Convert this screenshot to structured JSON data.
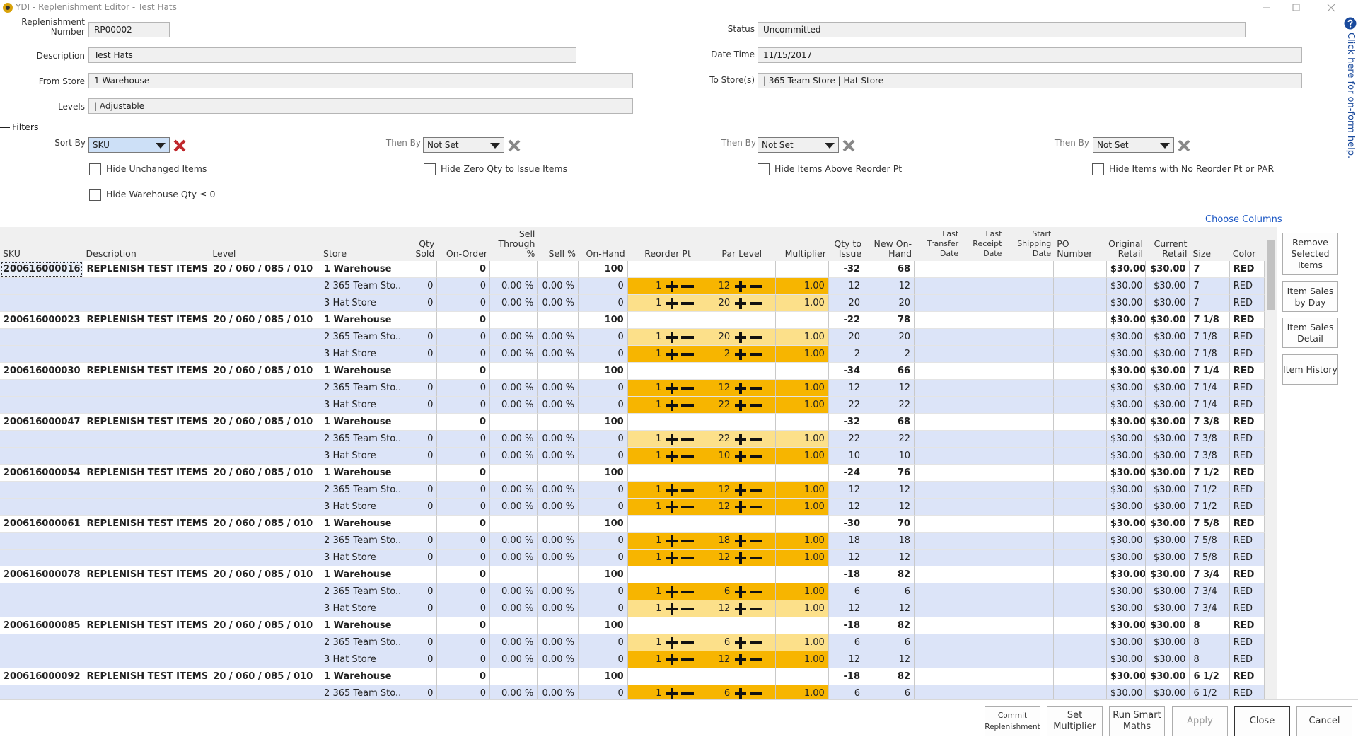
{
  "window": {
    "title": "YDI - Replenishment Editor - Test Hats"
  },
  "form": {
    "fields": [
      {
        "label": "Replenishment Number",
        "value": "RP00002"
      },
      {
        "label": "Description",
        "value": "Test Hats"
      },
      {
        "label": "From Store",
        "value": "1 Warehouse"
      },
      {
        "label": "Levels",
        "value": "| Adjustable"
      },
      {
        "label": "Status",
        "value": "Uncommitted"
      },
      {
        "label": "Date Time",
        "value": "11/15/2017"
      },
      {
        "label": "To Store(s)",
        "value": "| 365 Team Store | Hat Store"
      }
    ]
  },
  "filters": {
    "title": "Filters",
    "sorts": [
      {
        "label": "Sort By",
        "value": "SKU"
      },
      {
        "label": "Then By",
        "value": "Not Set"
      },
      {
        "label": "Then By",
        "value": "Not Set"
      },
      {
        "label": "Then By",
        "value": "Not Set"
      }
    ],
    "checkboxes": [
      "Hide Unchanged Items",
      "Hide Zero Qty to Issue Items",
      "Hide Items Above Reorder Pt",
      "Hide Items with No Reorder Pt or PAR",
      "Hide Warehouse Qty ≤ 0"
    ]
  },
  "table": {
    "choose_columns": "Choose Columns",
    "columns": [
      "SKU",
      "Description",
      "Level",
      "Store",
      "Qty Sold",
      "On-Order",
      "Sell Through %",
      "Sell %",
      "On-Hand",
      "Reorder Pt",
      "Par Level",
      "Multiplier",
      "Qty to Issue",
      "New On-Hand",
      "Last Transfer Date",
      "Last Receipt Date",
      "Start Shipping Date",
      "PO Number",
      "Original Retail",
      "Current Retail",
      "Size",
      "Color"
    ],
    "rows": [
      {
        "cells": [
          "200616000016",
          "REPLENISH TEST ITEMS",
          "20 / 060 / 085 / 010",
          "1 Warehouse",
          null,
          "0",
          null,
          null,
          "100",
          null,
          null,
          null,
          "-32",
          "68",
          null,
          null,
          null,
          null,
          "$30.00",
          "$30.00",
          "7",
          "RED"
        ]
      },
      {
        "cells": [
          null,
          null,
          null,
          "2 365 Team Sto...",
          "0",
          "0",
          "0.00 %",
          "0.00 %",
          "0",
          "1",
          "12",
          "1.00",
          "12",
          "12",
          null,
          null,
          null,
          null,
          "$30.00",
          "$30.00",
          "7",
          "RED"
        ],
        "color": "#f7b500"
      },
      {
        "cells": [
          null,
          null,
          null,
          "3 Hat Store",
          "0",
          "0",
          "0.00 %",
          "0.00 %",
          "0",
          "1",
          "20",
          "1.00",
          "20",
          "20",
          null,
          null,
          null,
          null,
          "$30.00",
          "$30.00",
          "7",
          "RED"
        ],
        "color": "#fce08a"
      },
      {
        "cells": [
          "200616000023",
          "REPLENISH TEST ITEMS",
          "20 / 060 / 085 / 010",
          "1 Warehouse",
          null,
          "0",
          null,
          null,
          "100",
          null,
          null,
          null,
          "-22",
          "78",
          null,
          null,
          null,
          null,
          "$30.00",
          "$30.00",
          "7 1/8",
          "RED"
        ]
      },
      {
        "cells": [
          null,
          null,
          null,
          "2 365 Team Sto...",
          "0",
          "0",
          "0.00 %",
          "0.00 %",
          "0",
          "1",
          "20",
          "1.00",
          "20",
          "20",
          null,
          null,
          null,
          null,
          "$30.00",
          "$30.00",
          "7 1/8",
          "RED"
        ],
        "color": "#fce08a"
      },
      {
        "cells": [
          null,
          null,
          null,
          "3 Hat Store",
          "0",
          "0",
          "0.00 %",
          "0.00 %",
          "0",
          "1",
          "2",
          "1.00",
          "2",
          "2",
          null,
          null,
          null,
          null,
          "$30.00",
          "$30.00",
          "7 1/8",
          "RED"
        ],
        "color": "#f7b500"
      },
      {
        "cells": [
          "200616000030",
          "REPLENISH TEST ITEMS",
          "20 / 060 / 085 / 010",
          "1 Warehouse",
          null,
          "0",
          null,
          null,
          "100",
          null,
          null,
          null,
          "-34",
          "66",
          null,
          null,
          null,
          null,
          "$30.00",
          "$30.00",
          "7 1/4",
          "RED"
        ]
      },
      {
        "cells": [
          null,
          null,
          null,
          "2 365 Team Sto...",
          "0",
          "0",
          "0.00 %",
          "0.00 %",
          "0",
          "1",
          "12",
          "1.00",
          "12",
          "12",
          null,
          null,
          null,
          null,
          "$30.00",
          "$30.00",
          "7 1/4",
          "RED"
        ],
        "color": "#f7b500"
      },
      {
        "cells": [
          null,
          null,
          null,
          "3 Hat Store",
          "0",
          "0",
          "0.00 %",
          "0.00 %",
          "0",
          "1",
          "22",
          "1.00",
          "22",
          "22",
          null,
          null,
          null,
          null,
          "$30.00",
          "$30.00",
          "7 1/4",
          "RED"
        ],
        "color": "#f7b500"
      },
      {
        "cells": [
          "200616000047",
          "REPLENISH TEST ITEMS",
          "20 / 060 / 085 / 010",
          "1 Warehouse",
          null,
          "0",
          null,
          null,
          "100",
          null,
          null,
          null,
          "-32",
          "68",
          null,
          null,
          null,
          null,
          "$30.00",
          "$30.00",
          "7 3/8",
          "RED"
        ]
      },
      {
        "cells": [
          null,
          null,
          null,
          "2 365 Team Sto...",
          "0",
          "0",
          "0.00 %",
          "0.00 %",
          "0",
          "1",
          "22",
          "1.00",
          "22",
          "22",
          null,
          null,
          null,
          null,
          "$30.00",
          "$30.00",
          "7 3/8",
          "RED"
        ],
        "color": "#fce08a"
      },
      {
        "cells": [
          null,
          null,
          null,
          "3 Hat Store",
          "0",
          "0",
          "0.00 %",
          "0.00 %",
          "0",
          "1",
          "10",
          "1.00",
          "10",
          "10",
          null,
          null,
          null,
          null,
          "$30.00",
          "$30.00",
          "7 3/8",
          "RED"
        ],
        "color": "#f7b500"
      },
      {
        "cells": [
          "200616000054",
          "REPLENISH TEST ITEMS",
          "20 / 060 / 085 / 010",
          "1 Warehouse",
          null,
          "0",
          null,
          null,
          "100",
          null,
          null,
          null,
          "-24",
          "76",
          null,
          null,
          null,
          null,
          "$30.00",
          "$30.00",
          "7 1/2",
          "RED"
        ]
      },
      {
        "cells": [
          null,
          null,
          null,
          "2 365 Team Sto...",
          "0",
          "0",
          "0.00 %",
          "0.00 %",
          "0",
          "1",
          "12",
          "1.00",
          "12",
          "12",
          null,
          null,
          null,
          null,
          "$30.00",
          "$30.00",
          "7 1/2",
          "RED"
        ],
        "color": "#f7b500"
      },
      {
        "cells": [
          null,
          null,
          null,
          "3 Hat Store",
          "0",
          "0",
          "0.00 %",
          "0.00 %",
          "0",
          "1",
          "12",
          "1.00",
          "12",
          "12",
          null,
          null,
          null,
          null,
          "$30.00",
          "$30.00",
          "7 1/2",
          "RED"
        ],
        "color": "#f7b500"
      },
      {
        "cells": [
          "200616000061",
          "REPLENISH TEST ITEMS",
          "20 / 060 / 085 / 010",
          "1 Warehouse",
          null,
          "0",
          null,
          null,
          "100",
          null,
          null,
          null,
          "-30",
          "70",
          null,
          null,
          null,
          null,
          "$30.00",
          "$30.00",
          "7 5/8",
          "RED"
        ]
      },
      {
        "cells": [
          null,
          null,
          null,
          "2 365 Team Sto...",
          "0",
          "0",
          "0.00 %",
          "0.00 %",
          "0",
          "1",
          "18",
          "1.00",
          "18",
          "18",
          null,
          null,
          null,
          null,
          "$30.00",
          "$30.00",
          "7 5/8",
          "RED"
        ],
        "color": "#f7b500"
      },
      {
        "cells": [
          null,
          null,
          null,
          "3 Hat Store",
          "0",
          "0",
          "0.00 %",
          "0.00 %",
          "0",
          "1",
          "12",
          "1.00",
          "12",
          "12",
          null,
          null,
          null,
          null,
          "$30.00",
          "$30.00",
          "7 5/8",
          "RED"
        ],
        "color": "#f7b500"
      },
      {
        "cells": [
          "200616000078",
          "REPLENISH TEST ITEMS",
          "20 / 060 / 085 / 010",
          "1 Warehouse",
          null,
          "0",
          null,
          null,
          "100",
          null,
          null,
          null,
          "-18",
          "82",
          null,
          null,
          null,
          null,
          "$30.00",
          "$30.00",
          "7 3/4",
          "RED"
        ]
      },
      {
        "cells": [
          null,
          null,
          null,
          "2 365 Team Sto...",
          "0",
          "0",
          "0.00 %",
          "0.00 %",
          "0",
          "1",
          "6",
          "1.00",
          "6",
          "6",
          null,
          null,
          null,
          null,
          "$30.00",
          "$30.00",
          "7 3/4",
          "RED"
        ],
        "color": "#f7b500"
      },
      {
        "cells": [
          null,
          null,
          null,
          "3 Hat Store",
          "0",
          "0",
          "0.00 %",
          "0.00 %",
          "0",
          "1",
          "12",
          "1.00",
          "12",
          "12",
          null,
          null,
          null,
          null,
          "$30.00",
          "$30.00",
          "7 3/4",
          "RED"
        ],
        "color": "#fce08a"
      },
      {
        "cells": [
          "200616000085",
          "REPLENISH TEST ITEMS",
          "20 / 060 / 085 / 010",
          "1 Warehouse",
          null,
          "0",
          null,
          null,
          "100",
          null,
          null,
          null,
          "-18",
          "82",
          null,
          null,
          null,
          null,
          "$30.00",
          "$30.00",
          "8",
          "RED"
        ]
      },
      {
        "cells": [
          null,
          null,
          null,
          "2 365 Team Sto...",
          "0",
          "0",
          "0.00 %",
          "0.00 %",
          "0",
          "1",
          "6",
          "1.00",
          "6",
          "6",
          null,
          null,
          null,
          null,
          "$30.00",
          "$30.00",
          "8",
          "RED"
        ],
        "color": "#fce08a"
      },
      {
        "cells": [
          null,
          null,
          null,
          "3 Hat Store",
          "0",
          "0",
          "0.00 %",
          "0.00 %",
          "0",
          "1",
          "12",
          "1.00",
          "12",
          "12",
          null,
          null,
          null,
          null,
          "$30.00",
          "$30.00",
          "8",
          "RED"
        ],
        "color": "#f7b500"
      },
      {
        "cells": [
          "200616000092",
          "REPLENISH TEST ITEMS",
          "20 / 060 / 085 / 010",
          "1 Warehouse",
          null,
          "0",
          null,
          null,
          "100",
          null,
          null,
          null,
          "-18",
          "82",
          null,
          null,
          null,
          null,
          "$30.00",
          "$30.00",
          "6 1/2",
          "RED"
        ]
      },
      {
        "cells": [
          null,
          null,
          null,
          "2 365 Team Sto...",
          "0",
          "0",
          "0.00 %",
          "0.00 %",
          "0",
          "1",
          "6",
          "1.00",
          "6",
          "6",
          null,
          null,
          null,
          null,
          "$30.00",
          "$30.00",
          "6 1/2",
          "RED"
        ],
        "color": "#f7b500"
      }
    ]
  },
  "side_buttons": [
    "Remove Selected Items",
    "Item Sales by Day",
    "Item Sales Detail",
    "Item History"
  ],
  "footer_buttons": [
    "Commit Replenishment",
    "Set Multiplier",
    "Run Smart Maths",
    "Apply",
    "Close",
    "Cancel"
  ],
  "help": "Click here for on-form help."
}
